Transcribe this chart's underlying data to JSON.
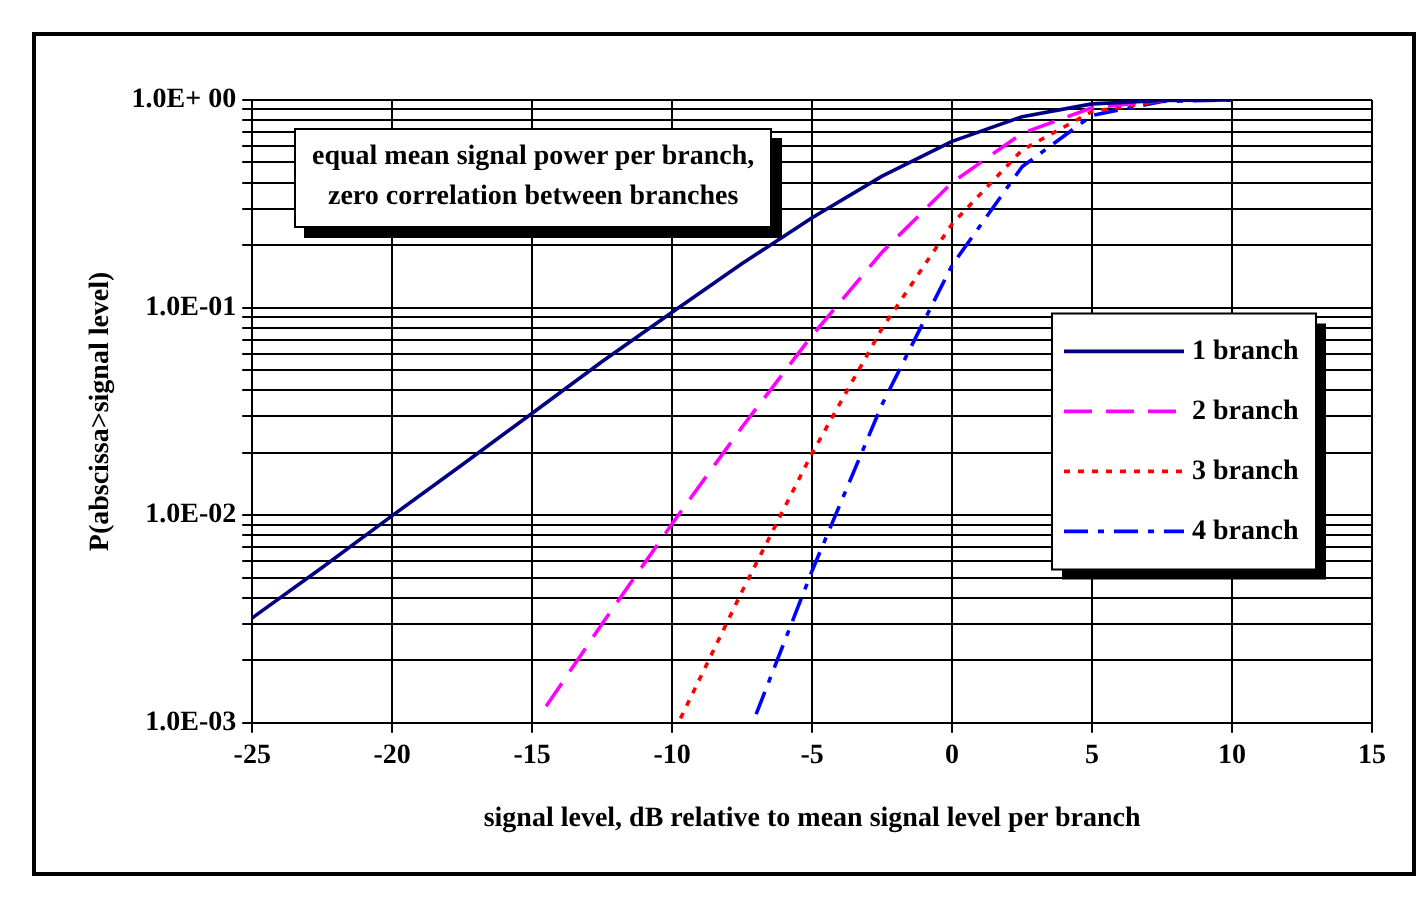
{
  "chart_data": {
    "type": "line",
    "xlabel": "signal level, dB relative to mean signal level per branch",
    "ylabel": "P(abscissa>signal level)",
    "annotations": [
      "equal mean signal power per branch,\nzero correlation between branches"
    ],
    "xlim": [
      -25,
      15
    ],
    "xticks": [
      -25,
      -20,
      -15,
      -10,
      -5,
      0,
      5,
      10,
      15
    ],
    "ylim": [
      0.001,
      1
    ],
    "log": "y",
    "yticks": [
      {
        "value": 0.001,
        "label": "1.0E-03"
      },
      {
        "value": 0.002,
        "label": null
      },
      {
        "value": 0.003,
        "label": null
      },
      {
        "value": 0.004,
        "label": null
      },
      {
        "value": 0.005,
        "label": null
      },
      {
        "value": 0.006,
        "label": null
      },
      {
        "value": 0.007,
        "label": null
      },
      {
        "value": 0.008,
        "label": null
      },
      {
        "value": 0.009,
        "label": null
      },
      {
        "value": 0.01,
        "label": "1.0E-02"
      },
      {
        "value": 0.02,
        "label": null
      },
      {
        "value": 0.03,
        "label": null
      },
      {
        "value": 0.04,
        "label": null
      },
      {
        "value": 0.05,
        "label": null
      },
      {
        "value": 0.06,
        "label": null
      },
      {
        "value": 0.07,
        "label": null
      },
      {
        "value": 0.08,
        "label": null
      },
      {
        "value": 0.09,
        "label": null
      },
      {
        "value": 0.1,
        "label": "1.0E-01"
      },
      {
        "value": 0.2,
        "label": null
      },
      {
        "value": 0.3,
        "label": null
      },
      {
        "value": 0.4,
        "label": null
      },
      {
        "value": 0.5,
        "label": null
      },
      {
        "value": 0.6,
        "label": null
      },
      {
        "value": 0.7,
        "label": null
      },
      {
        "value": 0.8,
        "label": null
      },
      {
        "value": 0.9,
        "label": null
      },
      {
        "value": 1,
        "label": "1.0E+ 00"
      }
    ],
    "grid": true,
    "legend": "right",
    "marker": "none",
    "series": [
      {
        "name": "1 branch",
        "color": "#000080",
        "line_style": "solid",
        "x": [
          -25,
          -22.5,
          -20,
          -17.5,
          -15,
          -12.5,
          -10,
          -7.5,
          -5,
          -2.5,
          0,
          2.5,
          5,
          7.5,
          10
        ],
        "values": [
          0.0032,
          0.0056,
          0.00995,
          0.0175,
          0.031,
          0.055,
          0.095,
          0.163,
          0.271,
          0.43,
          0.632,
          0.831,
          0.958,
          0.996,
          1.0
        ]
      },
      {
        "name": "2 branch",
        "color": "#ff00ff",
        "line_style": "dashed",
        "x": [
          -14.5,
          -12.5,
          -10,
          -7.5,
          -5,
          -2.5,
          0,
          2.5,
          5,
          7.5
        ],
        "values": [
          0.0012,
          0.003,
          0.0091,
          0.0266,
          0.0734,
          0.185,
          0.4,
          0.691,
          0.918,
          0.993
        ]
      },
      {
        "name": "3 branch",
        "color": "#ff0000",
        "line_style": "dotted",
        "x": [
          -9.7,
          -7.5,
          -5,
          -2.5,
          0,
          2.5,
          5,
          7.5
        ],
        "values": [
          0.00105,
          0.0043,
          0.0199,
          0.0795,
          0.253,
          0.574,
          0.88,
          0.989
        ]
      },
      {
        "name": "4 branch",
        "color": "#0000ff",
        "line_style": "dashdot",
        "x": [
          -7,
          -5,
          -2.5,
          0,
          2.5,
          5,
          7.5,
          10
        ],
        "values": [
          0.0011,
          0.0054,
          0.0342,
          0.16,
          0.477,
          0.843,
          0.985,
          1.0
        ]
      }
    ]
  }
}
